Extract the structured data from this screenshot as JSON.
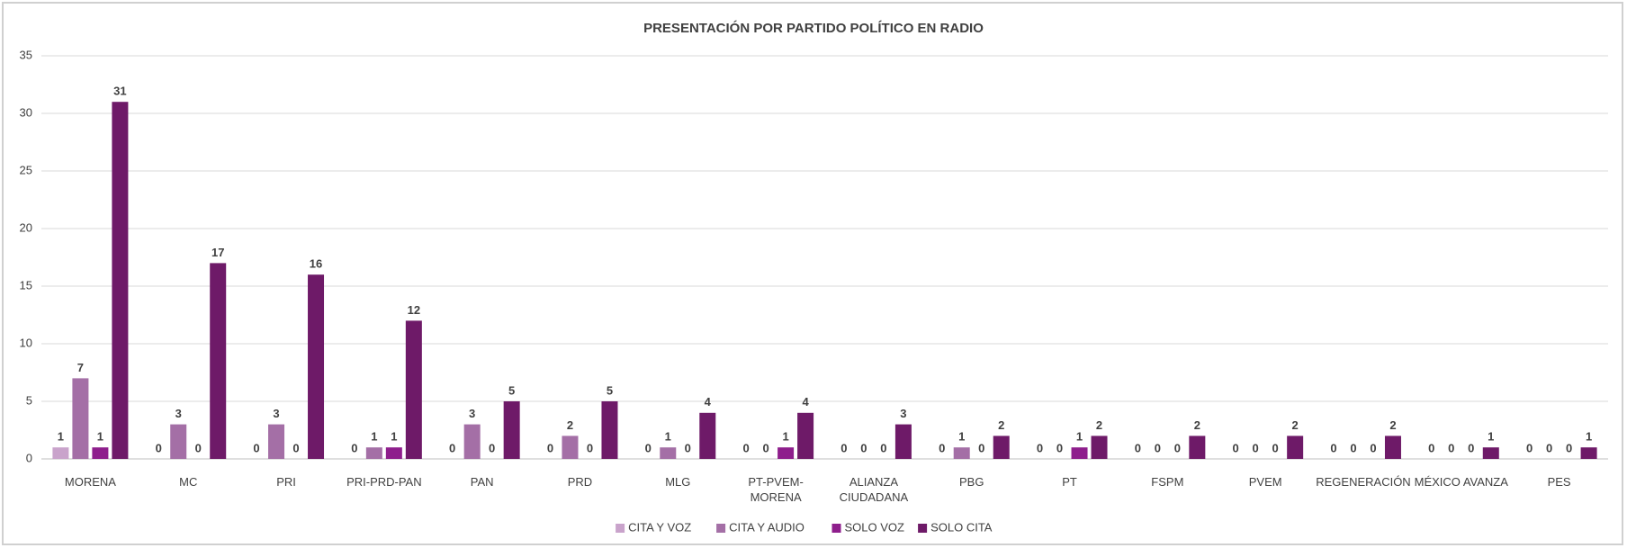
{
  "chart_data": {
    "type": "bar",
    "title": "PRESENTACIÓN POR PARTIDO POLÍTICO EN RADIO",
    "categories": [
      "MORENA",
      "MC",
      "PRI",
      "PRI-PRD-PAN",
      "PAN",
      "PRD",
      "MLG",
      "PT-PVEM-MORENA",
      "ALIANZA CIUDADANA",
      "PBG",
      "PT",
      "FSPM",
      "PVEM",
      "REGENERACIÓN",
      "MÉXICO AVANZA",
      "PES"
    ],
    "series": [
      {
        "name": "CITA Y VOZ",
        "color": "#c9a3cb",
        "values": [
          1,
          0,
          0,
          0,
          0,
          0,
          0,
          0,
          0,
          0,
          0,
          0,
          0,
          0,
          0,
          0
        ]
      },
      {
        "name": "CITA Y AUDIO",
        "color": "#a46fa6",
        "values": [
          7,
          3,
          3,
          1,
          3,
          2,
          1,
          0,
          0,
          1,
          0,
          0,
          0,
          0,
          0,
          0
        ]
      },
      {
        "name": "SOLO VOZ",
        "color": "#8e1e8c",
        "values": [
          1,
          0,
          0,
          1,
          0,
          0,
          0,
          1,
          0,
          0,
          1,
          0,
          0,
          0,
          0,
          0
        ]
      },
      {
        "name": "SOLO CITA",
        "color": "#6e1a68",
        "values": [
          31,
          17,
          16,
          12,
          5,
          5,
          4,
          4,
          3,
          2,
          2,
          2,
          2,
          2,
          1,
          1
        ]
      }
    ],
    "ylim": [
      0,
      35
    ],
    "yticks": [
      0,
      5,
      10,
      15,
      20,
      25,
      30,
      35
    ],
    "grid": true,
    "legend": "bottom"
  }
}
